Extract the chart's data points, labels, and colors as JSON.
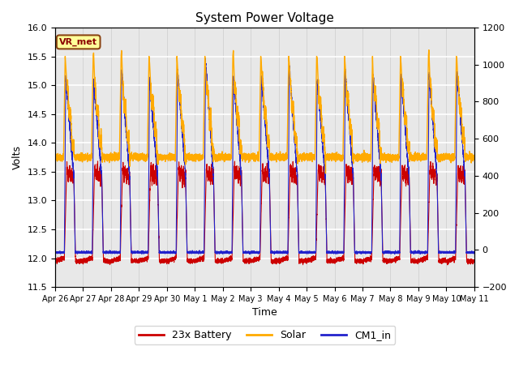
{
  "title": "System Power Voltage",
  "xlabel": "Time",
  "ylabel_left": "Volts",
  "ylim_left": [
    11.5,
    16.0
  ],
  "ylim_right": [
    -200,
    1200
  ],
  "yticks_left": [
    11.5,
    12.0,
    12.5,
    13.0,
    13.5,
    14.0,
    14.5,
    15.0,
    15.5,
    16.0
  ],
  "yticks_right": [
    -200,
    0,
    200,
    400,
    600,
    800,
    1000,
    1200
  ],
  "xtick_labels": [
    "Apr 26",
    "Apr 27",
    "Apr 28",
    "Apr 29",
    "Apr 30",
    "May 1",
    "May 2",
    "May 3",
    "May 4",
    "May 5",
    "May 6",
    "May 7",
    "May 8",
    "May 9",
    "May 10",
    "May 11"
  ],
  "num_days": 16,
  "annotation_text": "VR_met",
  "legend_labels": [
    "23x Battery",
    "Solar",
    "CM1_in"
  ],
  "colors": {
    "battery": "#cc0000",
    "solar": "#ffaa00",
    "cm1": "#2222cc",
    "background": "#e8e8e8",
    "grid_h": "#ffffff",
    "grid_v": "#cccccc"
  }
}
